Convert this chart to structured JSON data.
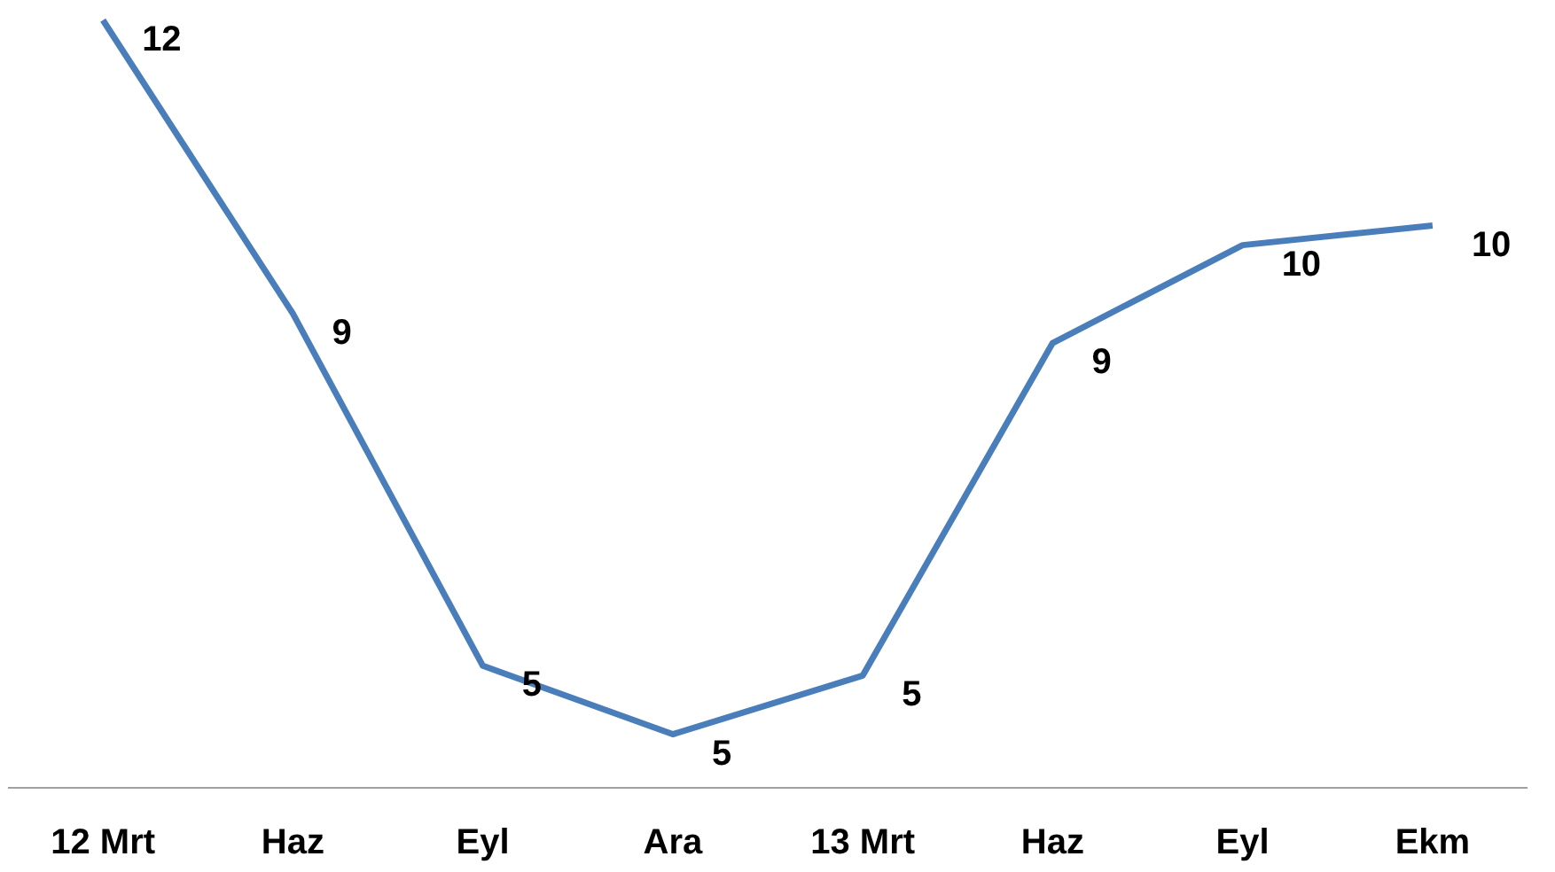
{
  "chart_data": {
    "type": "line",
    "categories": [
      "12 Mrt",
      "Haz",
      "Eyl",
      "Ara",
      "13 Mrt",
      "Haz",
      "Eyl",
      "Ekm"
    ],
    "series": [
      {
        "color": "#4a7ebb",
        "values": [
          11.9,
          8.9,
          5.3,
          4.6,
          5.2,
          8.6,
          9.6,
          9.8
        ],
        "value_labels": [
          "12",
          "9",
          "5",
          "5",
          "5",
          "9",
          "10",
          "10"
        ]
      }
    ],
    "grid": false,
    "marker": "none",
    "line_style": "solid",
    "tick_labels": "x"
  }
}
